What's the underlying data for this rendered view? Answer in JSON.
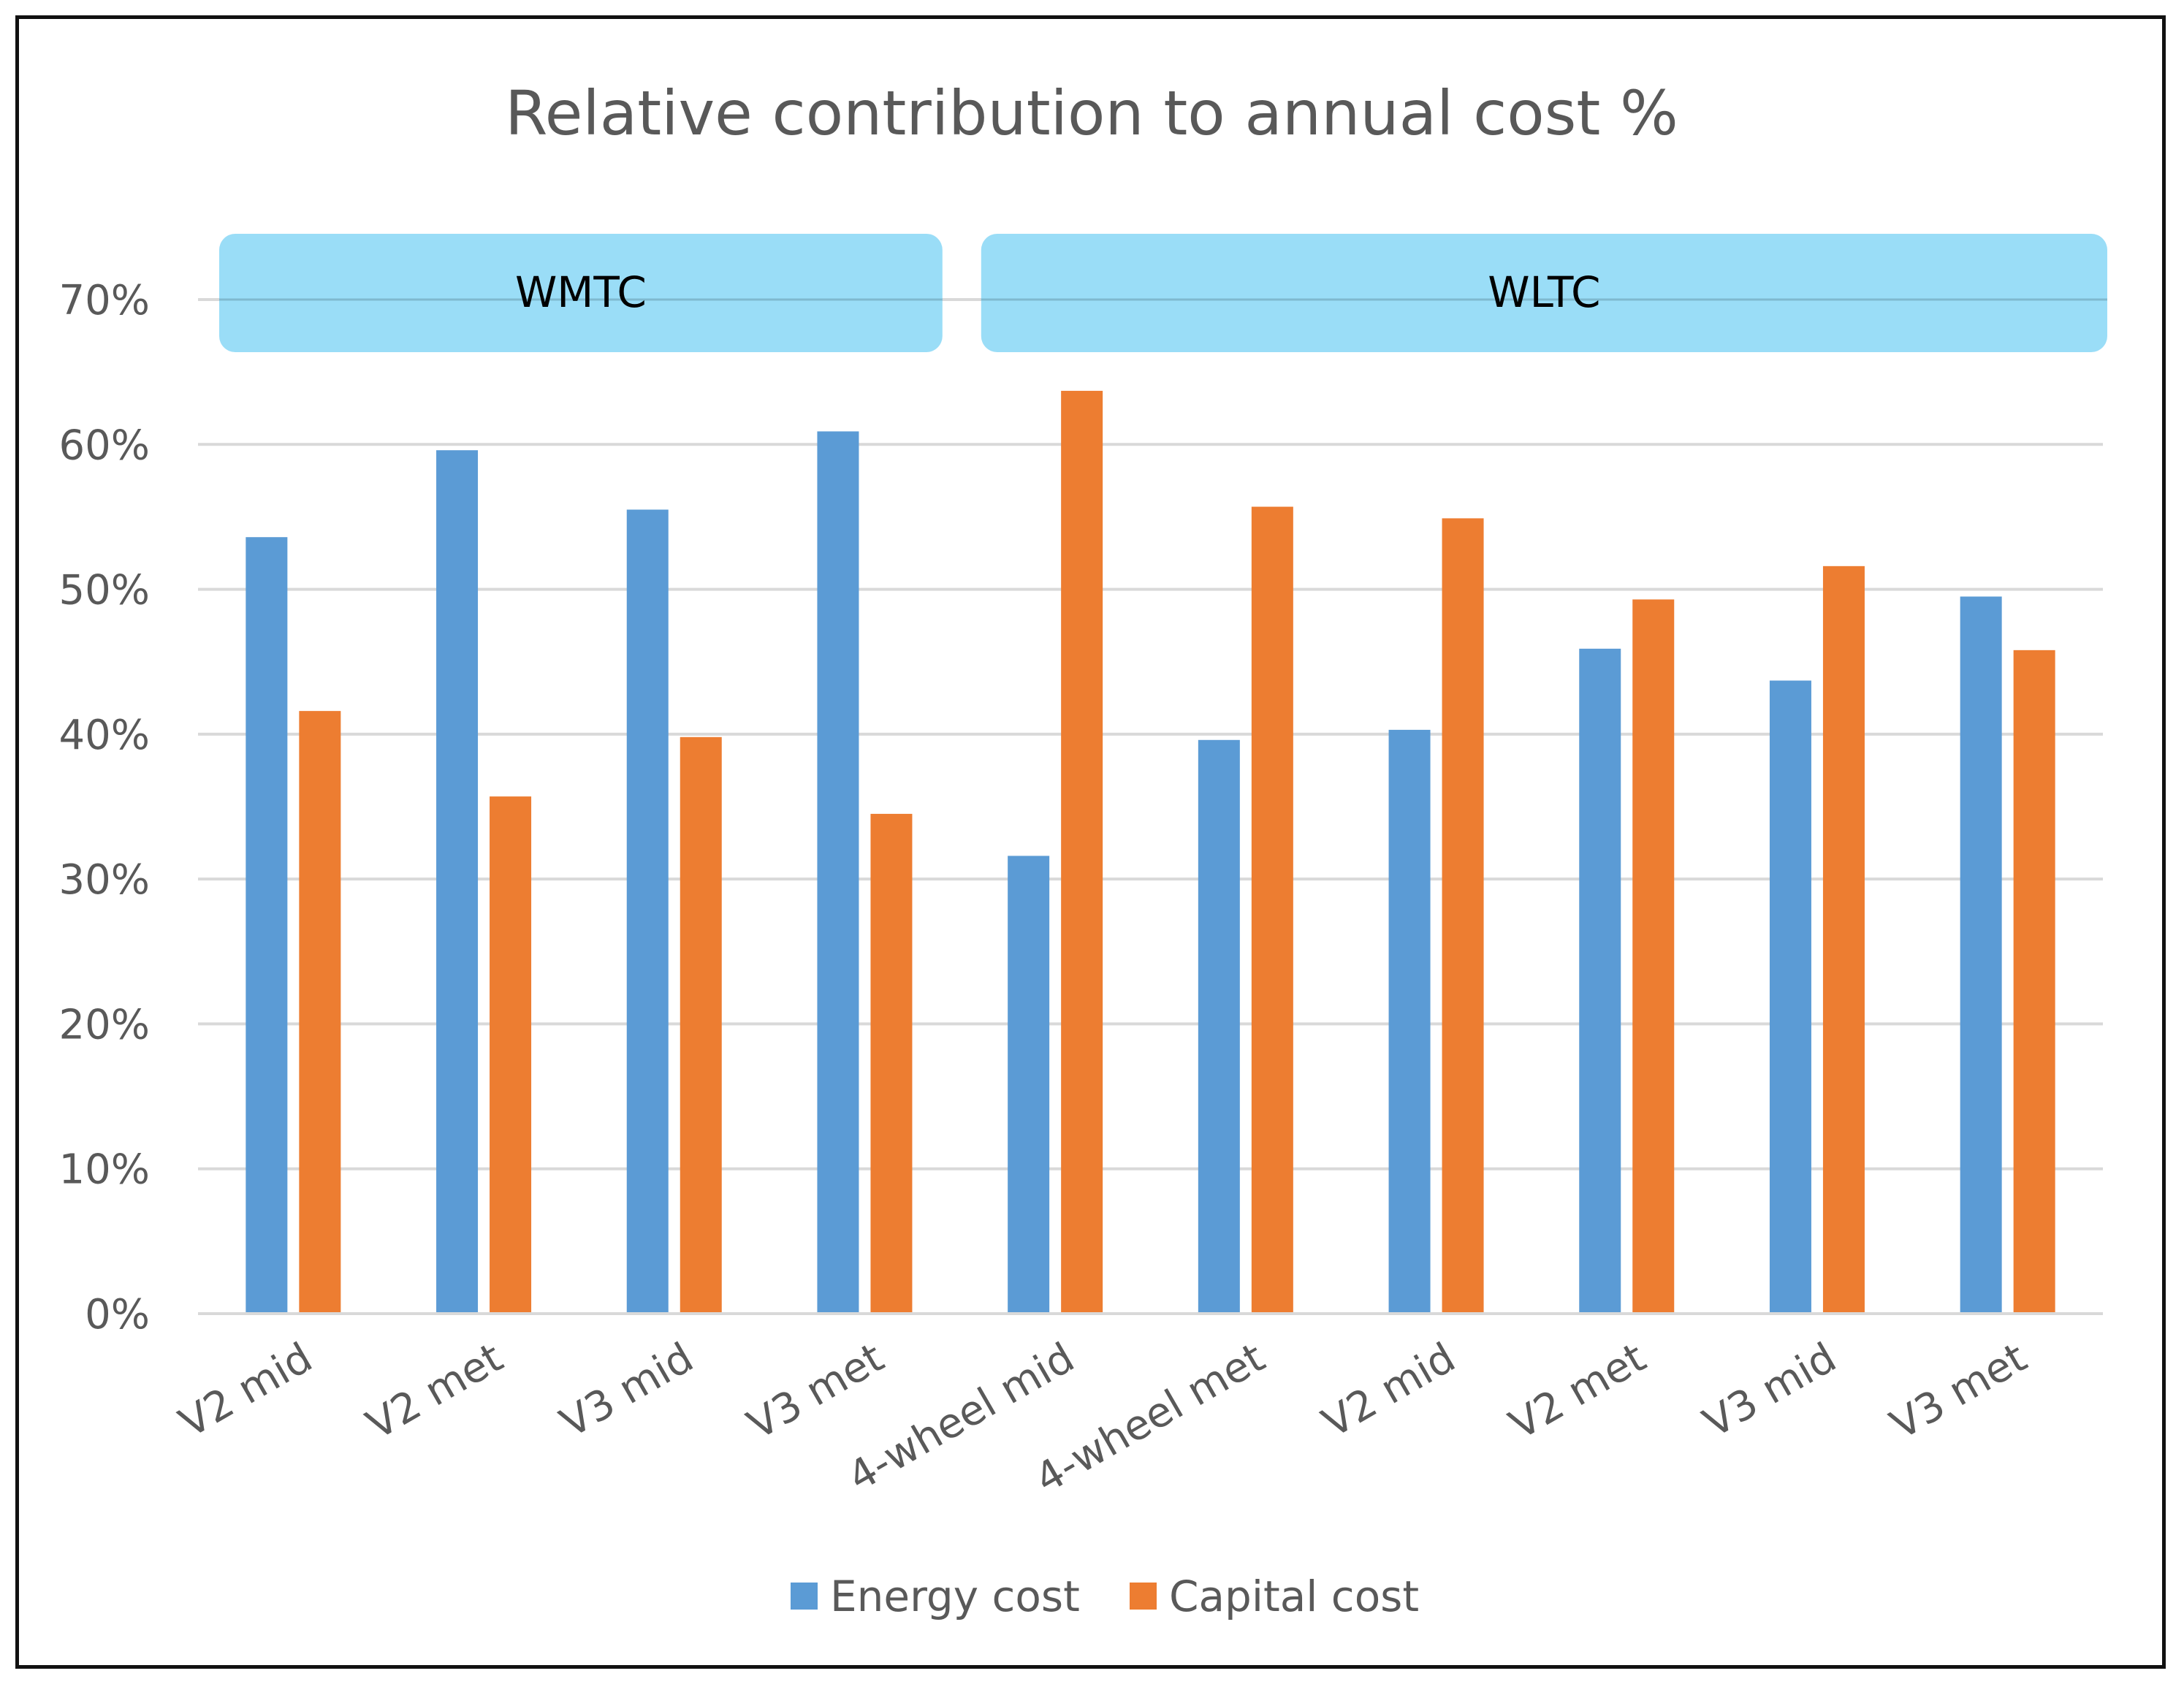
{
  "chart_data": {
    "type": "bar",
    "title": "Relative contribution to annual cost %",
    "xlabel": "",
    "ylabel": "",
    "ylim": [
      0,
      70
    ],
    "yticks": [
      "0%",
      "10%",
      "20%",
      "30%",
      "40%",
      "50%",
      "60%",
      "70%"
    ],
    "grid": true,
    "legend_position": "bottom",
    "categories": [
      "V2 mid",
      "V2 met",
      "V3 mid",
      "V3 met",
      "4-wheel mid",
      "4-wheel met",
      "V2 mid",
      "V2 met",
      "V3 mid",
      "V3 met"
    ],
    "groups": [
      {
        "label": "WMTC",
        "category_count": 4
      },
      {
        "label": "WLTC",
        "category_count": 6
      }
    ],
    "series": [
      {
        "name": "Energy cost",
        "color": "#5B9BD5",
        "values": [
          53.6,
          59.6,
          55.5,
          60.9,
          31.6,
          39.6,
          40.3,
          45.9,
          43.7,
          49.5
        ]
      },
      {
        "name": "Capital cost",
        "color": "#ED7D31",
        "values": [
          41.6,
          35.7,
          39.8,
          34.5,
          63.7,
          55.7,
          54.9,
          49.3,
          51.6,
          45.8
        ]
      }
    ],
    "group_box_color": "#9ADDF7"
  }
}
